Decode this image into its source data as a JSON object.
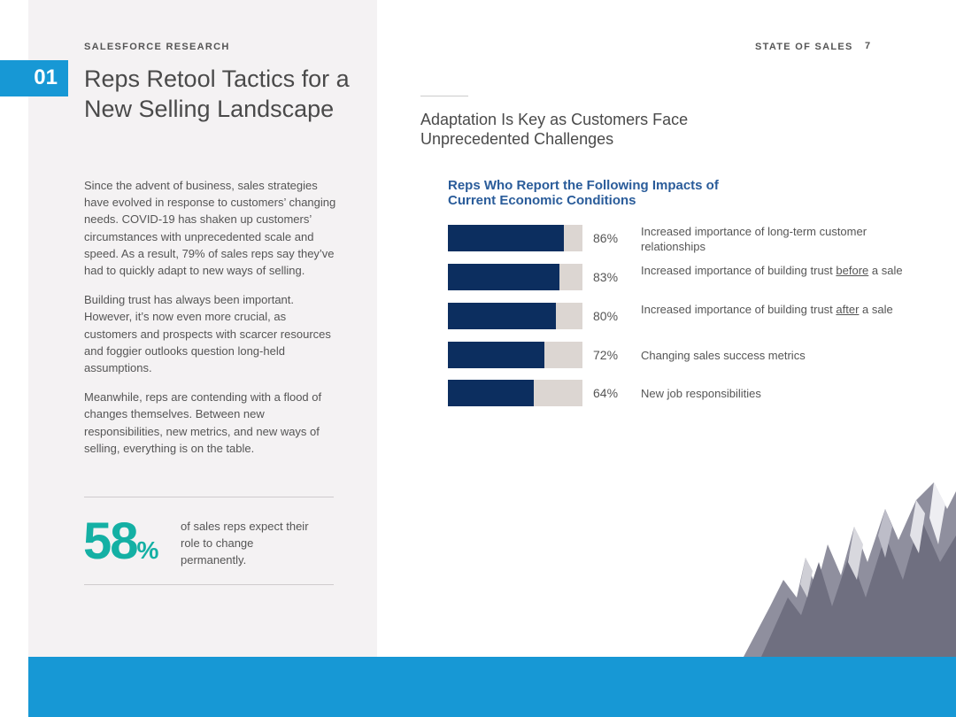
{
  "header": {
    "eyebrow": "SALESFORCE RESEARCH",
    "report": "STATE OF SALES",
    "page": "7"
  },
  "section": {
    "number": "01",
    "title": "Reps Retool Tactics for a New Selling Landscape"
  },
  "body": [
    "Since the advent of business, sales strategies have evolved in response to customers’ changing needs. COVID-19 has shaken up customers’ circumstances with unprecedented scale and speed. As a result, 79% of sales reps say they’ve had to quickly adapt to new ways of selling.",
    "Building trust has always been important. However, it’s now even more crucial, as customers and prospects with scarcer resources and foggier outlooks question long-held assumptions.",
    "Meanwhile, reps are contending with a flood of changes themselves. Between new responsibilities, new metrics, and new ways of selling, everything is on the table."
  ],
  "callout": {
    "value": "58",
    "unit": "%",
    "text": "of sales reps expect their role to change permanently."
  },
  "subtitle": "Adaptation Is Key as Customers Face Unprecedented Challenges",
  "colors": {
    "bar": "#0c2e5f",
    "track": "#dcd6d2",
    "accent": "#1798d5",
    "callout": "#14b0a4",
    "chart_title": "#2a5c9a"
  },
  "chart_data": {
    "type": "bar",
    "orientation": "horizontal",
    "title": "Reps Who Report the Following Impacts of Current Economic Conditions",
    "xlim": [
      0,
      100
    ],
    "categories": [
      {
        "pre": "Increased importance of long-term customer relationships",
        "u": "",
        "post": ""
      },
      {
        "pre": "Increased importance of building trust ",
        "u": "before",
        "post": " a sale"
      },
      {
        "pre": "Increased importance of building trust ",
        "u": "after",
        "post": " a sale"
      },
      {
        "pre": "Changing sales success metrics",
        "u": "",
        "post": ""
      },
      {
        "pre": "New job responsibilities",
        "u": "",
        "post": ""
      }
    ],
    "values": [
      86,
      83,
      80,
      72,
      64
    ],
    "value_labels": [
      "86%",
      "83%",
      "80%",
      "72%",
      "64%"
    ]
  }
}
